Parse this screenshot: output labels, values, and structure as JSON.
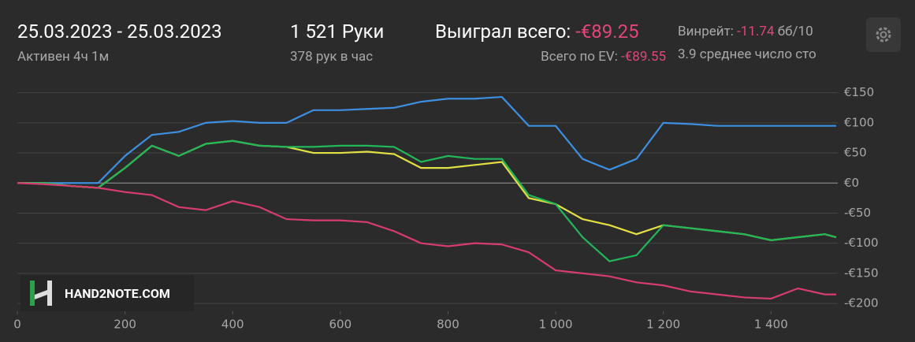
{
  "header": {
    "date_range": "25.03.2023 - 25.03.2023",
    "active": "Активен 4ч 1м",
    "hands": "1 521 Руки",
    "hands_per_hour": "378 рук в час",
    "won_label": "Выиграл всего:",
    "won_value": "-€89.25",
    "ev_label": "Всего по EV:",
    "ev_value": "-€89.55",
    "winrate_label": "Винрейт:",
    "winrate_value": "-11.74",
    "winrate_unit": "бб/10",
    "tables": "3.9 среднее число сто"
  },
  "logo": "HAND2NOTE.COM",
  "chart_data": {
    "type": "line",
    "x": [
      0,
      50,
      100,
      150,
      200,
      250,
      300,
      350,
      400,
      450,
      500,
      550,
      600,
      650,
      700,
      750,
      800,
      850,
      900,
      950,
      1000,
      1050,
      1100,
      1150,
      1200,
      1250,
      1300,
      1350,
      1400,
      1450,
      1500,
      1521
    ],
    "series": [
      {
        "color": "#3d8fe0",
        "values": [
          0,
          0,
          0,
          0,
          45,
          80,
          85,
          100,
          103,
          100,
          100,
          121,
          121,
          123,
          125,
          135,
          140,
          140,
          143,
          95,
          95,
          40,
          22,
          40,
          100,
          98,
          95,
          95,
          95,
          95,
          95,
          95
        ]
      },
      {
        "color": "#e2e043",
        "values": [
          0,
          0,
          -5,
          -8,
          25,
          62,
          45,
          65,
          70,
          62,
          60,
          50,
          50,
          52,
          48,
          25,
          25,
          30,
          35,
          -25,
          -35,
          -60,
          -70,
          -85,
          -70,
          -75,
          -80,
          -85,
          -95,
          -90,
          -85,
          -90
        ]
      },
      {
        "color": "#22b85a",
        "values": [
          0,
          0,
          -5,
          -8,
          25,
          62,
          45,
          65,
          70,
          62,
          60,
          60,
          62,
          62,
          60,
          35,
          45,
          40,
          40,
          -20,
          -35,
          -90,
          -130,
          -120,
          -70,
          -75,
          -80,
          -85,
          -95,
          -90,
          -85,
          -90
        ]
      },
      {
        "color": "#d63c6e",
        "values": [
          0,
          -2,
          -5,
          -8,
          -15,
          -20,
          -40,
          -45,
          -30,
          -40,
          -60,
          -62,
          -62,
          -65,
          -80,
          -100,
          -105,
          -100,
          -102,
          -115,
          -145,
          -150,
          -155,
          -165,
          -170,
          -180,
          -185,
          -190,
          -192,
          -175,
          -185,
          -185
        ]
      }
    ],
    "xlim": [
      0,
      1524
    ],
    "xticks": [
      0,
      200,
      400,
      600,
      800,
      {
        "value": 1000,
        "label": "1 000"
      },
      {
        "value": 1200,
        "label": "1 200"
      },
      {
        "value": 1400,
        "label": "1 400"
      }
    ],
    "ylim": [
      -213,
      160
    ],
    "yticks": [
      {
        "value": 150,
        "label": "€150"
      },
      {
        "value": 100,
        "label": "€100"
      },
      {
        "value": 50,
        "label": "€50"
      },
      {
        "value": 0,
        "label": "€0"
      },
      {
        "value": -50,
        "label": "-€50"
      },
      {
        "value": -100,
        "label": "-€100"
      },
      {
        "value": -150,
        "label": "-€150"
      },
      {
        "value": -200,
        "label": "-€200"
      }
    ],
    "grid": true
  }
}
